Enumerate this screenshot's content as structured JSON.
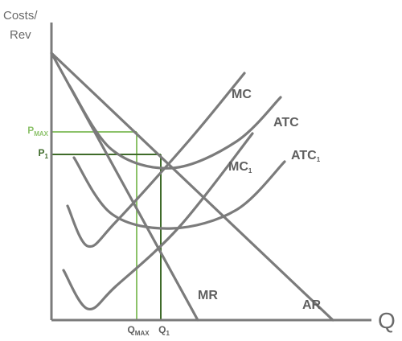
{
  "chart_data": {
    "type": "line",
    "title": "",
    "ylabel_line1": "Costs/",
    "ylabel_line2": "Rev",
    "xlabel": "Q",
    "colors": {
      "curves": "#7b7b7b",
      "pmax_lines": "#8cc26a",
      "p1_lines": "#3f6b2a",
      "axes": "#7b7b7b"
    },
    "series": [
      {
        "name": "AR",
        "points": [
          [
            0,
            0
          ],
          [
            350,
            332
          ]
        ]
      },
      {
        "name": "MR",
        "points": [
          [
            0,
            0
          ],
          [
            182,
            332
          ]
        ]
      },
      {
        "name": "MC",
        "points": [
          [
            20,
            190
          ],
          [
            45,
            240
          ],
          [
            80,
            210
          ],
          [
            170,
            110
          ],
          [
            240,
            25
          ]
        ]
      },
      {
        "name": "ATC",
        "points": [
          [
            22,
            40
          ],
          [
            75,
            120
          ],
          [
            150,
            143
          ],
          [
            230,
            110
          ],
          [
            285,
            55
          ]
        ]
      },
      {
        "name": "MC",
        "sub": "1",
        "points": [
          [
            15,
            270
          ],
          [
            45,
            318
          ],
          [
            80,
            290
          ],
          [
            160,
            215
          ],
          [
            250,
            100
          ]
        ]
      },
      {
        "name": "ATC",
        "sub": "1",
        "points": [
          [
            28,
            130
          ],
          [
            75,
            200
          ],
          [
            150,
            218
          ],
          [
            230,
            195
          ],
          [
            290,
            135
          ]
        ]
      }
    ],
    "markers": [
      {
        "name": "P",
        "sub": "MAX",
        "q_name": "Q",
        "q_sub": "MAX",
        "q": 106,
        "p": 98,
        "tone": "pmax"
      },
      {
        "name": "P",
        "sub": "1",
        "q_name": "Q",
        "q_sub": "1",
        "q": 136,
        "p": 126,
        "tone": "p1"
      }
    ]
  }
}
